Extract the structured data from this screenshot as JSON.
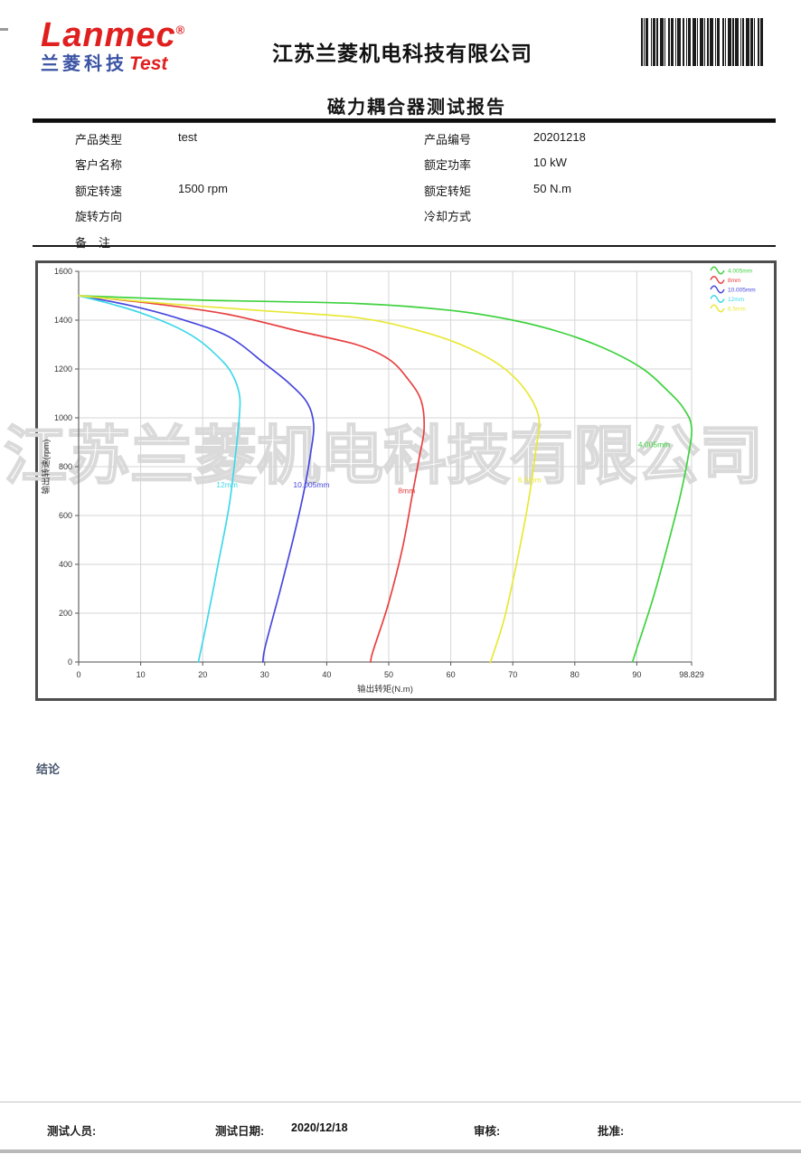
{
  "page": {
    "logo": {
      "brand": "Lanmec",
      "reg": "®",
      "sub_cn": "兰菱科技",
      "sub_en": "Test"
    },
    "company": "江苏兰菱机电科技有限公司",
    "title": "磁力耦合器测试报告"
  },
  "form": {
    "rows": [
      {
        "l1": "产品类型",
        "v1": "test",
        "l2": "产品编号",
        "v2": "20201218"
      },
      {
        "l1": "客户名称",
        "v1": "",
        "l2": "额定功率",
        "v2": "10 kW"
      },
      {
        "l1": "额定转速",
        "v1": "1500 rpm",
        "l2": "额定转矩",
        "v2": "50 N.m"
      },
      {
        "l1": "旋转方向",
        "v1": "",
        "l2": "冷却方式",
        "v2": ""
      },
      {
        "l1": "备　注",
        "v1": "",
        "l2": "",
        "v2": ""
      }
    ]
  },
  "chart_data": {
    "type": "line",
    "title": "",
    "xlabel": "输出转矩(N.m)",
    "ylabel": "输出转速(rpm)",
    "xlim": [
      0,
      98.829
    ],
    "ylim": [
      0,
      1600
    ],
    "x_ticks": [
      0,
      10,
      20,
      30,
      40,
      50,
      60,
      70,
      80,
      90,
      98.829
    ],
    "y_ticks": [
      0,
      200,
      400,
      600,
      800,
      1000,
      1200,
      1400,
      1600
    ],
    "grid": true,
    "legend_position": "top-right-outside-plot",
    "series": [
      {
        "name": "4.005mm",
        "color": "#3fd23f",
        "label_at": [
          90.2,
          880
        ],
        "points": [
          [
            0,
            1500
          ],
          [
            20,
            1482
          ],
          [
            45,
            1468
          ],
          [
            60,
            1440
          ],
          [
            70,
            1400
          ],
          [
            78,
            1348
          ],
          [
            85,
            1282
          ],
          [
            91,
            1200
          ],
          [
            95,
            1110
          ],
          [
            97.5,
            1040
          ],
          [
            98.83,
            960
          ],
          [
            98.2,
            830
          ],
          [
            96.9,
            670
          ],
          [
            95,
            480
          ],
          [
            92.6,
            260
          ],
          [
            90,
            55
          ],
          [
            89.3,
            0
          ]
        ]
      },
      {
        "name": "8mm",
        "color": "#e84040",
        "label_at": [
          51.5,
          690
        ],
        "points": [
          [
            0,
            1500
          ],
          [
            12,
            1468
          ],
          [
            24,
            1424
          ],
          [
            36,
            1352
          ],
          [
            45,
            1298
          ],
          [
            50,
            1240
          ],
          [
            53,
            1162
          ],
          [
            55.2,
            1072
          ],
          [
            55.7,
            955
          ],
          [
            54.9,
            835
          ],
          [
            53.8,
            685
          ],
          [
            52.2,
            465
          ],
          [
            49.9,
            235
          ],
          [
            47.4,
            40
          ],
          [
            47.1,
            0
          ]
        ]
      },
      {
        "name": "10.005mm",
        "color": "#4747dd",
        "label_at": [
          34.6,
          715
        ],
        "points": [
          [
            0,
            1500
          ],
          [
            8,
            1462
          ],
          [
            16,
            1408
          ],
          [
            24,
            1335
          ],
          [
            30,
            1222
          ],
          [
            34,
            1140
          ],
          [
            36.9,
            1060
          ],
          [
            37.9,
            970
          ],
          [
            37.4,
            855
          ],
          [
            36.3,
            695
          ],
          [
            34.6,
            505
          ],
          [
            32.4,
            285
          ],
          [
            30.1,
            65
          ],
          [
            29.7,
            0
          ]
        ]
      },
      {
        "name": "12mm",
        "color": "#3fd8ea",
        "label_at": [
          22.2,
          715
        ],
        "points": [
          [
            0,
            1500
          ],
          [
            5,
            1468
          ],
          [
            10,
            1430
          ],
          [
            15,
            1380
          ],
          [
            19,
            1325
          ],
          [
            22,
            1262
          ],
          [
            24.5,
            1190
          ],
          [
            25.9,
            1098
          ],
          [
            25.9,
            1005
          ],
          [
            25.4,
            875
          ],
          [
            24.3,
            645
          ],
          [
            22.6,
            415
          ],
          [
            20.6,
            155
          ],
          [
            19.3,
            0
          ]
        ]
      },
      {
        "name": "6.5mm",
        "color": "#e8e838",
        "label_at": [
          70.8,
          735
        ],
        "points": [
          [
            0,
            1500
          ],
          [
            15,
            1466
          ],
          [
            30,
            1438
          ],
          [
            45,
            1410
          ],
          [
            55,
            1356
          ],
          [
            62,
            1296
          ],
          [
            68,
            1214
          ],
          [
            72,
            1115
          ],
          [
            74.2,
            1000
          ],
          [
            73.7,
            865
          ],
          [
            72.7,
            685
          ],
          [
            71.1,
            465
          ],
          [
            68.7,
            185
          ],
          [
            66.6,
            15
          ],
          [
            66.4,
            0
          ]
        ]
      }
    ]
  },
  "watermark": "江苏兰菱机电科技有限公司",
  "conclusion_label": "结论",
  "footer": {
    "tester_label": "测试人员:",
    "date_label": "测试日期:",
    "date_value": "2020/12/18",
    "review_label": "审核:",
    "approve_label": "批准:"
  },
  "barcode": {
    "bars": [
      2,
      1,
      1,
      1,
      3,
      2,
      1,
      1,
      3,
      1,
      2,
      2,
      4,
      1,
      1,
      2,
      2,
      1,
      3,
      2,
      1,
      1,
      4,
      2,
      2,
      1,
      1,
      1,
      3,
      2,
      4,
      1,
      1,
      2,
      3,
      1,
      1,
      2,
      2,
      1,
      4,
      2,
      1,
      1,
      3,
      2,
      2,
      1,
      1,
      2,
      4,
      1,
      2,
      1,
      3,
      2,
      1,
      1,
      2,
      2,
      4,
      1,
      3,
      1,
      1,
      2,
      2,
      1,
      3,
      2
    ]
  }
}
